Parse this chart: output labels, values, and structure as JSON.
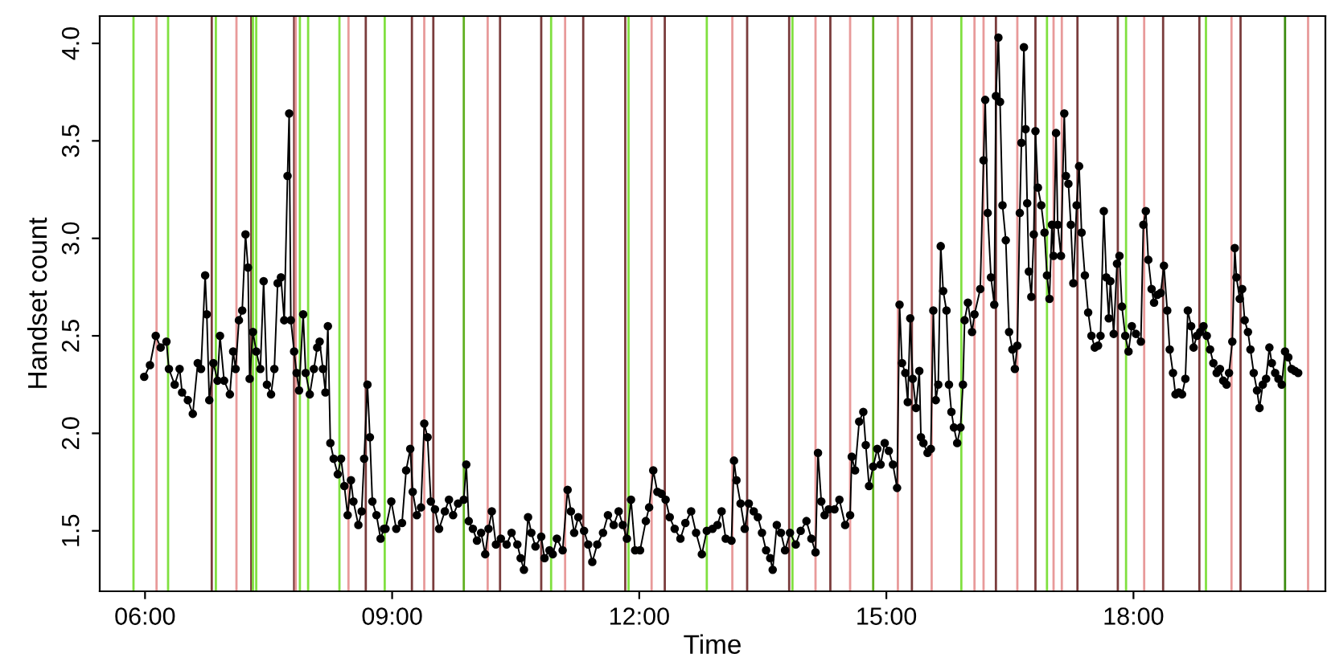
{
  "chart_data": {
    "type": "line",
    "xlabel": "Time",
    "ylabel": "Handset count",
    "marker": "circle",
    "line_style": "solid",
    "grid": false,
    "xlim": [
      5.45,
      20.33
    ],
    "ylim": [
      1.19,
      4.14
    ],
    "xticks": [
      {
        "value": 6,
        "label": "06:00"
      },
      {
        "value": 9,
        "label": "09:00"
      },
      {
        "value": 12,
        "label": "12:00"
      },
      {
        "value": 15,
        "label": "15:00"
      },
      {
        "value": 18,
        "label": "18:00"
      }
    ],
    "yticks": [
      1.5,
      {
        "value": 2,
        "label": "2.0"
      },
      2.5,
      {
        "value": 3,
        "label": "3.0"
      },
      3.5,
      {
        "value": 4,
        "label": "4.0"
      }
    ],
    "series": [
      {
        "color": "#000000",
        "x": [
          5.99,
          6.06,
          6.13,
          6.19,
          6.26,
          6.29,
          6.36,
          6.42,
          6.45,
          6.52,
          6.58,
          6.64,
          6.68,
          6.73,
          6.75,
          6.78,
          6.83,
          6.88,
          6.91,
          6.96,
          7.03,
          7.07,
          7.1,
          7.14,
          7.18,
          7.22,
          7.25,
          7.27,
          7.31,
          7.35,
          7.4,
          7.44,
          7.48,
          7.53,
          7.57,
          7.61,
          7.65,
          7.69,
          7.73,
          7.75,
          7.77,
          7.81,
          7.84,
          7.87,
          7.92,
          7.95,
          8.0,
          8.05,
          8.09,
          8.12,
          8.16,
          8.19,
          8.22,
          8.25,
          8.29,
          8.34,
          8.38,
          8.42,
          8.46,
          8.5,
          8.53,
          8.59,
          8.63,
          8.66,
          8.7,
          8.73,
          8.76,
          8.81,
          8.86,
          8.9,
          8.92,
          8.99,
          9.05,
          9.12,
          9.17,
          9.22,
          9.25,
          9.3,
          9.35,
          9.39,
          9.43,
          9.47,
          9.52,
          9.57,
          9.64,
          9.69,
          9.74,
          9.8,
          9.87,
          9.9,
          9.93,
          9.98,
          10.03,
          10.08,
          10.13,
          10.17,
          10.21,
          10.26,
          10.32,
          10.39,
          10.45,
          10.52,
          10.56,
          10.6,
          10.65,
          10.69,
          10.74,
          10.81,
          10.85,
          10.91,
          10.95,
          11.0,
          11.07,
          11.13,
          11.17,
          11.21,
          11.26,
          11.33,
          11.38,
          11.43,
          11.49,
          11.56,
          11.62,
          11.69,
          11.75,
          11.8,
          11.85,
          11.9,
          11.95,
          12.01,
          12.08,
          12.12,
          12.17,
          12.22,
          12.27,
          12.32,
          12.37,
          12.43,
          12.5,
          12.56,
          12.63,
          12.69,
          12.76,
          12.82,
          12.89,
          12.95,
          13.0,
          13.05,
          13.12,
          13.15,
          13.18,
          13.23,
          13.28,
          13.33,
          13.39,
          13.44,
          13.49,
          13.54,
          13.59,
          13.62,
          13.67,
          13.72,
          13.77,
          13.83,
          13.9,
          13.96,
          14.03,
          14.09,
          14.14,
          14.17,
          14.21,
          14.25,
          14.3,
          14.37,
          14.43,
          14.5,
          14.56,
          14.58,
          14.62,
          14.67,
          14.72,
          14.75,
          14.79,
          14.84,
          14.89,
          14.93,
          14.98,
          15.03,
          15.08,
          15.13,
          15.16,
          15.19,
          15.23,
          15.26,
          15.29,
          15.32,
          15.36,
          15.4,
          15.42,
          15.45,
          15.5,
          15.54,
          15.57,
          15.6,
          15.63,
          15.66,
          15.69,
          15.73,
          15.76,
          15.79,
          15.82,
          15.86,
          15.9,
          15.93,
          15.95,
          15.99,
          16.04,
          16.07,
          16.14,
          16.18,
          16.2,
          16.23,
          16.27,
          16.31,
          16.33,
          16.36,
          16.38,
          16.41,
          16.45,
          16.49,
          16.53,
          16.56,
          16.59,
          16.62,
          16.64,
          16.67,
          16.69,
          16.71,
          16.73,
          16.76,
          16.79,
          16.81,
          16.84,
          16.88,
          16.92,
          16.95,
          16.98,
          17.01,
          17.03,
          17.06,
          17.08,
          17.12,
          17.16,
          17.18,
          17.21,
          17.24,
          17.27,
          17.31,
          17.34,
          17.37,
          17.41,
          17.45,
          17.49,
          17.53,
          17.57,
          17.6,
          17.64,
          17.67,
          17.7,
          17.72,
          17.76,
          17.8,
          17.83,
          17.86,
          17.9,
          17.94,
          17.98,
          18.03,
          18.09,
          18.12,
          18.15,
          18.18,
          18.22,
          18.25,
          18.29,
          18.33,
          18.37,
          18.41,
          18.44,
          18.48,
          18.51,
          18.55,
          18.59,
          18.63,
          18.66,
          18.7,
          18.73,
          18.77,
          18.81,
          18.85,
          18.89,
          18.93,
          18.97,
          19.01,
          19.05,
          19.09,
          19.13,
          19.16,
          19.2,
          19.23,
          19.25,
          19.29,
          19.32,
          19.35,
          19.39,
          19.42,
          19.46,
          19.5,
          19.53,
          19.57,
          19.61,
          19.65,
          19.68,
          19.72,
          19.76,
          19.8,
          19.84,
          19.88,
          19.92,
          19.96,
          20.0
        ],
        "values": [
          2.29,
          2.35,
          2.5,
          2.44,
          2.47,
          2.33,
          2.25,
          2.33,
          2.21,
          2.17,
          2.1,
          2.36,
          2.33,
          2.81,
          2.61,
          2.17,
          2.36,
          2.27,
          2.5,
          2.27,
          2.2,
          2.42,
          2.33,
          2.58,
          2.63,
          3.02,
          2.85,
          2.28,
          2.52,
          2.42,
          2.33,
          2.78,
          2.25,
          2.2,
          2.33,
          2.77,
          2.8,
          2.58,
          3.32,
          3.64,
          2.58,
          2.42,
          2.31,
          2.22,
          2.61,
          2.31,
          2.2,
          2.33,
          2.44,
          2.47,
          2.33,
          2.21,
          2.55,
          1.95,
          1.87,
          1.79,
          1.87,
          1.73,
          1.58,
          1.76,
          1.65,
          1.53,
          1.6,
          1.87,
          2.25,
          1.98,
          1.65,
          1.58,
          1.46,
          1.51,
          1.51,
          1.65,
          1.51,
          1.54,
          1.81,
          1.92,
          1.7,
          1.58,
          1.62,
          2.05,
          1.98,
          1.65,
          1.61,
          1.51,
          1.6,
          1.66,
          1.58,
          1.64,
          1.66,
          1.84,
          1.55,
          1.51,
          1.45,
          1.49,
          1.38,
          1.51,
          1.6,
          1.43,
          1.46,
          1.43,
          1.49,
          1.43,
          1.36,
          1.3,
          1.57,
          1.49,
          1.42,
          1.47,
          1.36,
          1.4,
          1.38,
          1.46,
          1.4,
          1.71,
          1.6,
          1.49,
          1.57,
          1.5,
          1.43,
          1.34,
          1.43,
          1.49,
          1.58,
          1.53,
          1.6,
          1.53,
          1.46,
          1.66,
          1.4,
          1.4,
          1.55,
          1.62,
          1.81,
          1.7,
          1.69,
          1.66,
          1.57,
          1.51,
          1.46,
          1.54,
          1.6,
          1.49,
          1.38,
          1.5,
          1.51,
          1.53,
          1.6,
          1.46,
          1.45,
          1.86,
          1.76,
          1.64,
          1.51,
          1.64,
          1.6,
          1.57,
          1.49,
          1.4,
          1.36,
          1.3,
          1.53,
          1.49,
          1.4,
          1.49,
          1.43,
          1.5,
          1.55,
          1.46,
          1.39,
          1.9,
          1.65,
          1.58,
          1.61,
          1.61,
          1.66,
          1.53,
          1.58,
          1.88,
          1.81,
          2.06,
          2.11,
          1.94,
          1.73,
          1.83,
          1.92,
          1.84,
          1.95,
          1.91,
          1.84,
          1.72,
          2.66,
          2.36,
          2.31,
          2.16,
          2.59,
          2.28,
          2.13,
          2.32,
          1.98,
          1.95,
          1.9,
          1.92,
          2.63,
          2.17,
          2.25,
          2.96,
          2.73,
          2.63,
          2.25,
          2.11,
          2.03,
          1.95,
          2.03,
          2.25,
          2.58,
          2.67,
          2.52,
          2.61,
          2.74,
          3.4,
          3.71,
          3.13,
          2.8,
          2.66,
          3.73,
          4.03,
          3.7,
          3.17,
          2.99,
          2.52,
          2.43,
          2.33,
          2.45,
          3.13,
          3.49,
          3.98,
          3.56,
          3.18,
          2.83,
          2.7,
          3.02,
          3.55,
          3.26,
          3.17,
          3.03,
          2.81,
          2.69,
          3.07,
          2.91,
          3.54,
          3.07,
          2.91,
          3.64,
          3.32,
          3.28,
          3.07,
          2.77,
          3.17,
          3.37,
          3.03,
          2.81,
          2.62,
          2.5,
          2.44,
          2.45,
          2.5,
          3.14,
          2.8,
          2.59,
          2.78,
          2.51,
          2.87,
          2.91,
          2.65,
          2.5,
          2.42,
          2.55,
          2.51,
          2.47,
          3.07,
          3.14,
          2.89,
          2.74,
          2.67,
          2.71,
          2.72,
          2.86,
          2.63,
          2.43,
          2.31,
          2.2,
          2.21,
          2.2,
          2.28,
          2.63,
          2.55,
          2.44,
          2.5,
          2.52,
          2.55,
          2.5,
          2.43,
          2.36,
          2.31,
          2.33,
          2.27,
          2.25,
          2.31,
          2.47,
          2.95,
          2.8,
          2.69,
          2.74,
          2.58,
          2.52,
          2.43,
          2.31,
          2.22,
          2.13,
          2.25,
          2.28,
          2.44,
          2.36,
          2.31,
          2.28,
          2.25,
          2.42,
          2.39,
          2.33,
          2.32,
          2.31
        ]
      }
    ],
    "ref_lines": [
      {
        "axis": "x",
        "value": 5.86,
        "color": "#80e040"
      },
      {
        "axis": "x",
        "value": 6.14,
        "color": "#e89a9a"
      },
      {
        "axis": "x",
        "value": 6.28,
        "color": "#80e040"
      },
      {
        "axis": "x",
        "value": 6.81,
        "color": "#7a3c3c"
      },
      {
        "axis": "x",
        "value": 6.86,
        "color": "#80e040"
      },
      {
        "axis": "x",
        "value": 7.11,
        "color": "#e89a9a"
      },
      {
        "axis": "x",
        "value": 7.29,
        "color": "#7a3c3c"
      },
      {
        "axis": "x",
        "value": 7.31,
        "color": "#80e040"
      },
      {
        "axis": "x",
        "value": 7.35,
        "color": "#80e040"
      },
      {
        "axis": "x",
        "value": 7.81,
        "color": "#7a3c3c"
      },
      {
        "axis": "x",
        "value": 7.83,
        "color": "#e89a9a"
      },
      {
        "axis": "x",
        "value": 7.88,
        "color": "#80e040"
      },
      {
        "axis": "x",
        "value": 7.98,
        "color": "#80e040"
      },
      {
        "axis": "x",
        "value": 8.36,
        "color": "#80e040"
      },
      {
        "axis": "x",
        "value": 8.47,
        "color": "#e89a9a"
      },
      {
        "axis": "x",
        "value": 8.68,
        "color": "#7a3c3c"
      },
      {
        "axis": "x",
        "value": 8.91,
        "color": "#80e040"
      },
      {
        "axis": "x",
        "value": 9.24,
        "color": "#7a3c3c"
      },
      {
        "axis": "x",
        "value": 9.39,
        "color": "#e89a9a"
      },
      {
        "axis": "x",
        "value": 9.5,
        "color": "#7a3c3c"
      },
      {
        "axis": "x",
        "value": 9.87,
        "color": "#60b020"
      },
      {
        "axis": "x",
        "value": 10.16,
        "color": "#e89a9a"
      },
      {
        "axis": "x",
        "value": 10.31,
        "color": "#7a3c3c"
      },
      {
        "axis": "x",
        "value": 10.81,
        "color": "#7a3c3c"
      },
      {
        "axis": "x",
        "value": 10.93,
        "color": "#80e040"
      },
      {
        "axis": "x",
        "value": 11.1,
        "color": "#e89a9a"
      },
      {
        "axis": "x",
        "value": 11.32,
        "color": "#7a3c3c"
      },
      {
        "axis": "x",
        "value": 11.83,
        "color": "#7a3c3c"
      },
      {
        "axis": "x",
        "value": 11.87,
        "color": "#80e040"
      },
      {
        "axis": "x",
        "value": 12.15,
        "color": "#e89a9a"
      },
      {
        "axis": "x",
        "value": 12.31,
        "color": "#7a3c3c"
      },
      {
        "axis": "x",
        "value": 12.82,
        "color": "#80e040"
      },
      {
        "axis": "x",
        "value": 13.13,
        "color": "#e89a9a"
      },
      {
        "axis": "x",
        "value": 13.31,
        "color": "#7a3c3c"
      },
      {
        "axis": "x",
        "value": 13.82,
        "color": "#7a3c3c"
      },
      {
        "axis": "x",
        "value": 13.86,
        "color": "#80e040"
      },
      {
        "axis": "x",
        "value": 14.14,
        "color": "#e89a9a"
      },
      {
        "axis": "x",
        "value": 14.32,
        "color": "#7a3c3c"
      },
      {
        "axis": "x",
        "value": 14.56,
        "color": "#e89a9a"
      },
      {
        "axis": "x",
        "value": 14.84,
        "color": "#60b020"
      },
      {
        "axis": "x",
        "value": 15.14,
        "color": "#e89a9a"
      },
      {
        "axis": "x",
        "value": 15.31,
        "color": "#7a3c3c"
      },
      {
        "axis": "x",
        "value": 15.55,
        "color": "#e89a9a"
      },
      {
        "axis": "x",
        "value": 15.91,
        "color": "#80e040"
      },
      {
        "axis": "x",
        "value": 16.07,
        "color": "#e89a9a"
      },
      {
        "axis": "x",
        "value": 16.18,
        "color": "#e89a9a"
      },
      {
        "axis": "x",
        "value": 16.33,
        "color": "#7a3c3c"
      },
      {
        "axis": "x",
        "value": 16.59,
        "color": "#e89a9a"
      },
      {
        "axis": "x",
        "value": 16.81,
        "color": "#7a3c3c"
      },
      {
        "axis": "x",
        "value": 16.95,
        "color": "#80e040"
      },
      {
        "axis": "x",
        "value": 17.03,
        "color": "#e89a9a"
      },
      {
        "axis": "x",
        "value": 17.13,
        "color": "#e89a9a"
      },
      {
        "axis": "x",
        "value": 17.32,
        "color": "#7a3c3c"
      },
      {
        "axis": "x",
        "value": 17.81,
        "color": "#7a3c3c"
      },
      {
        "axis": "x",
        "value": 17.91,
        "color": "#80e040"
      },
      {
        "axis": "x",
        "value": 18.13,
        "color": "#e89a9a"
      },
      {
        "axis": "x",
        "value": 18.36,
        "color": "#7a3c3c"
      },
      {
        "axis": "x",
        "value": 18.8,
        "color": "#7a3c3c"
      },
      {
        "axis": "x",
        "value": 18.88,
        "color": "#80e040"
      },
      {
        "axis": "x",
        "value": 19.19,
        "color": "#e89a9a"
      },
      {
        "axis": "x",
        "value": 19.3,
        "color": "#7a3c3c"
      },
      {
        "axis": "x",
        "value": 19.84,
        "color": "#3c8c10"
      },
      {
        "axis": "x",
        "value": 20.12,
        "color": "#e89a9a"
      }
    ]
  }
}
